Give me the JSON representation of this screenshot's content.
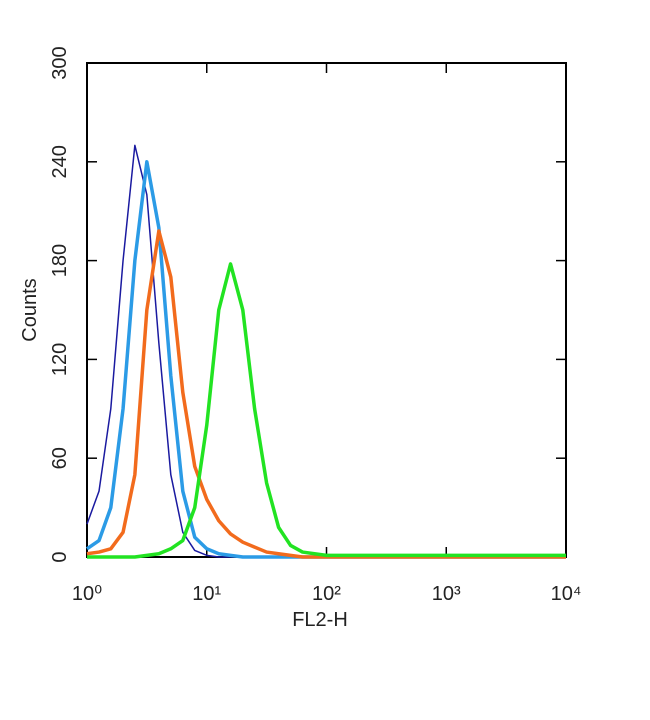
{
  "chart_data": {
    "type": "line",
    "x_label": "FL2-H",
    "y_label": "Counts",
    "x": [
      1,
      1.26,
      1.58,
      2,
      2.51,
      3.16,
      3.98,
      5.01,
      6.31,
      7.94,
      10,
      12.6,
      15.8,
      20,
      25.1,
      31.6,
      39.8,
      50.1,
      63.1,
      79.4,
      100,
      158,
      251,
      398,
      631,
      1000,
      1585,
      2512,
      3981,
      6310,
      10000
    ],
    "series": [
      {
        "color": "#1a1aa0",
        "values": [
          20,
          40,
          90,
          180,
          250,
          220,
          130,
          50,
          15,
          4,
          1,
          0,
          0,
          0,
          0,
          0,
          0,
          0,
          0,
          0,
          0,
          0,
          0,
          0,
          0,
          0,
          0,
          0,
          0,
          0,
          0
        ]
      },
      {
        "color": "#2b9be6",
        "values": [
          5,
          10,
          30,
          90,
          180,
          240,
          200,
          110,
          40,
          12,
          5,
          2,
          1,
          0,
          0,
          0,
          0,
          0,
          0,
          0,
          0,
          0,
          0,
          0,
          0,
          0,
          0,
          0,
          0,
          0,
          0
        ]
      },
      {
        "color": "#f26b1d",
        "values": [
          2,
          3,
          5,
          15,
          50,
          150,
          198,
          170,
          100,
          55,
          35,
          22,
          14,
          9,
          6,
          3,
          2,
          1,
          0,
          0,
          0,
          0,
          0,
          0,
          0,
          0,
          0,
          0,
          0,
          0,
          0
        ]
      },
      {
        "color": "#22e322",
        "values": [
          0,
          0,
          0,
          0,
          0,
          1,
          2,
          5,
          10,
          30,
          80,
          150,
          178,
          150,
          90,
          45,
          18,
          7,
          3,
          2,
          1,
          1,
          1,
          1,
          1,
          1,
          1,
          1,
          1,
          1,
          1
        ]
      }
    ],
    "xscale": "log",
    "xlim": [
      1,
      10000
    ],
    "xticks": [
      {
        "value": 1,
        "label": "10⁰"
      },
      {
        "value": 10,
        "label": "10¹"
      },
      {
        "value": 100,
        "label": "10²"
      },
      {
        "value": 1000,
        "label": "10³"
      },
      {
        "value": 10000,
        "label": "10⁴"
      }
    ],
    "ylim": [
      0,
      300
    ],
    "yticks": [
      0,
      60,
      120,
      180,
      240,
      300
    ]
  }
}
